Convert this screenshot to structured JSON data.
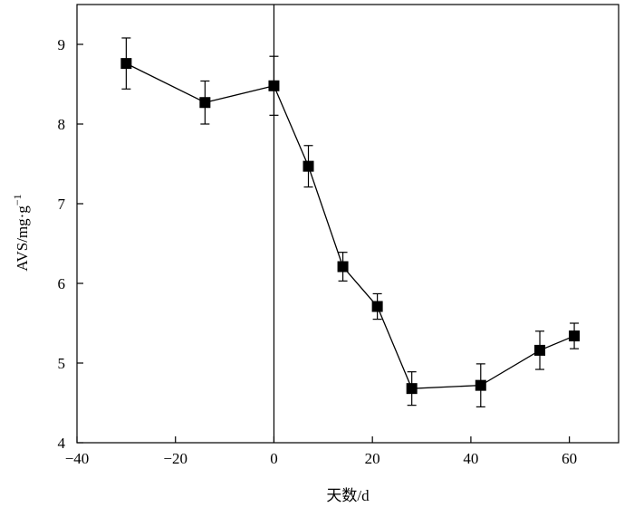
{
  "chart_data": {
    "type": "scatter",
    "title": "",
    "xlabel": "天数/d",
    "ylabel": "AVS/mg·g",
    "ylabel_superscript": "−1",
    "xlim": [
      -40,
      70
    ],
    "ylim": [
      4,
      9.5
    ],
    "x_ticks": [
      -40,
      -20,
      0,
      20,
      40,
      60
    ],
    "x_tick_labels": [
      "−40",
      "−20",
      "0",
      "20",
      "40",
      "60"
    ],
    "y_ticks": [
      4,
      5,
      6,
      7,
      8,
      9
    ],
    "y_tick_labels": [
      "4",
      "5",
      "6",
      "7",
      "8",
      "9"
    ],
    "grid": false,
    "reference_line_x": 0,
    "marker": "square",
    "connect_points": true,
    "series": [
      {
        "points": [
          {
            "x": -30,
            "y": 8.76,
            "err": 0.32
          },
          {
            "x": -14,
            "y": 8.27,
            "err": 0.27
          },
          {
            "x": 0,
            "y": 8.48,
            "err": 0.37
          },
          {
            "x": 7,
            "y": 7.47,
            "err": 0.26
          },
          {
            "x": 14,
            "y": 6.21,
            "err": 0.18
          },
          {
            "x": 21,
            "y": 5.71,
            "err": 0.16
          },
          {
            "x": 28,
            "y": 4.68,
            "err": 0.21
          },
          {
            "x": 42,
            "y": 4.72,
            "err": 0.27
          },
          {
            "x": 54,
            "y": 5.16,
            "err": 0.24
          },
          {
            "x": 61,
            "y": 5.34,
            "err": 0.16
          }
        ]
      }
    ]
  }
}
